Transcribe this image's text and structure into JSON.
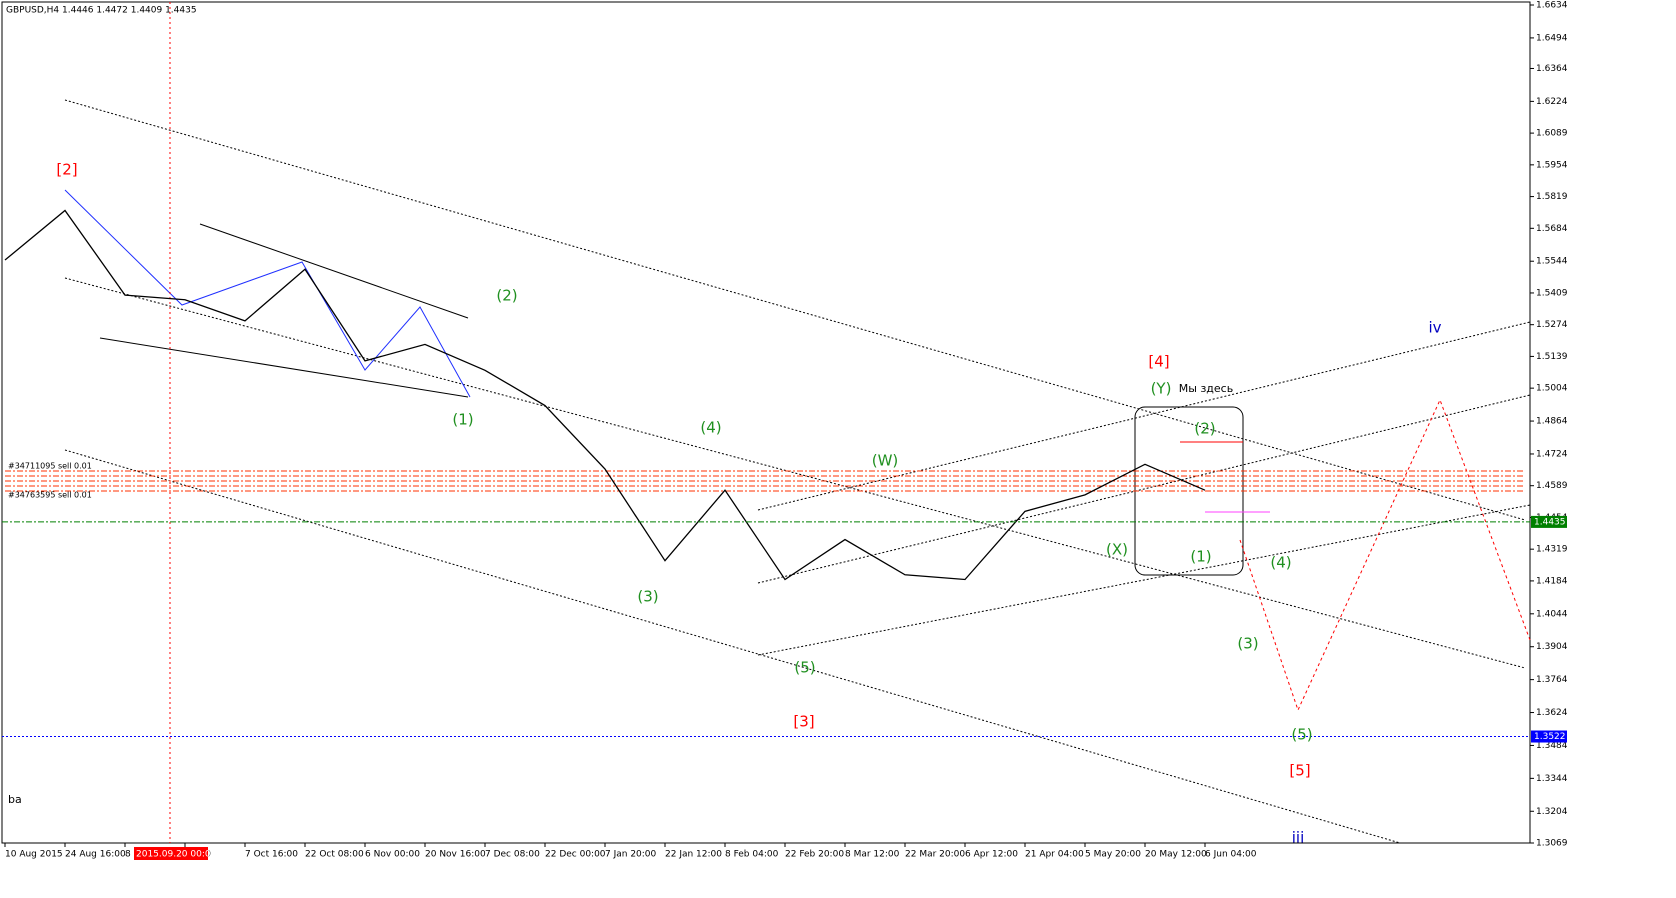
{
  "chart_data": {
    "type": "line",
    "title": "GBPUSD,H4  1.4446 1.4472 1.4409 1.4435",
    "corner_label": "ba",
    "categories": [
      "10 Aug 2015",
      "24 Aug 16:00",
      "8 S",
      "00:00",
      "7 Oct 16:00",
      "22 Oct 08:00",
      "6 Nov 00:00",
      "20 Nov 16:00",
      "7 Dec 08:00",
      "22 Dec 00:00",
      "7 Jan 20:00",
      "22 Jan 12:00",
      "8 Feb 04:00",
      "22 Feb 20:00",
      "8 Mar 12:00",
      "22 Mar 20:00",
      "6 Apr 12:00",
      "21 Apr 04:00",
      "5 May 20:00",
      "20 May 12:00",
      "6 Jun 04:00"
    ],
    "values": [
      1.5549,
      1.576,
      1.54,
      1.538,
      1.529,
      1.551,
      1.512,
      1.519,
      1.508,
      1.493,
      1.466,
      1.427,
      1.457,
      1.419,
      1.436,
      1.421,
      1.419,
      1.448,
      1.455,
      1.468,
      1.457
    ],
    "color": "#000000",
    "ylim": [
      1.3069,
      1.6634
    ],
    "yticks": [
      1.6634,
      1.6494,
      1.6364,
      1.6224,
      1.6089,
      1.5954,
      1.5819,
      1.5684,
      1.5544,
      1.5409,
      1.5274,
      1.5139,
      1.5004,
      1.4864,
      1.4724,
      1.4589,
      1.4454,
      1.4319,
      1.4184,
      1.4044,
      1.3904,
      1.3764,
      1.3624,
      1.3484,
      1.3344,
      1.3204,
      1.3069
    ],
    "hlines": [
      {
        "value": 1.4435,
        "color": "#008000"
      },
      {
        "value": 1.3522,
        "color": "#0000ff"
      }
    ],
    "crosshair_label": "2015.09.20 00:00",
    "orders": [
      "#34711095 sell 0.01",
      "#34763595 sell 0.01"
    ],
    "annotations": [
      {
        "text": "[2]",
        "color": "#ff0000"
      },
      {
        "text": "(1)",
        "color": "#209020"
      },
      {
        "text": "(2)",
        "color": "#209020"
      },
      {
        "text": "(3)",
        "color": "#209020"
      },
      {
        "text": "(4)",
        "color": "#209020"
      },
      {
        "text": "(5)",
        "color": "#209020"
      },
      {
        "text": "[3]",
        "color": "#ff0000"
      },
      {
        "text": "(W)",
        "color": "#209020"
      },
      {
        "text": "(X)",
        "color": "#209020"
      },
      {
        "text": "(Y)",
        "color": "#209020"
      },
      {
        "text": "[4]",
        "color": "#ff0000"
      },
      {
        "text": "Мы здесь",
        "color": "#000000"
      },
      {
        "text": "(2)",
        "color": "#209020"
      },
      {
        "text": "(1)",
        "color": "#209020"
      },
      {
        "text": "(4)",
        "color": "#209020"
      },
      {
        "text": "(3)",
        "color": "#209020"
      },
      {
        "text": "(5)",
        "color": "#209020"
      },
      {
        "text": "[5]",
        "color": "#ff0000"
      },
      {
        "text": "iii",
        "color": "#0000c0"
      },
      {
        "text": "iv",
        "color": "#0000c0"
      }
    ]
  }
}
